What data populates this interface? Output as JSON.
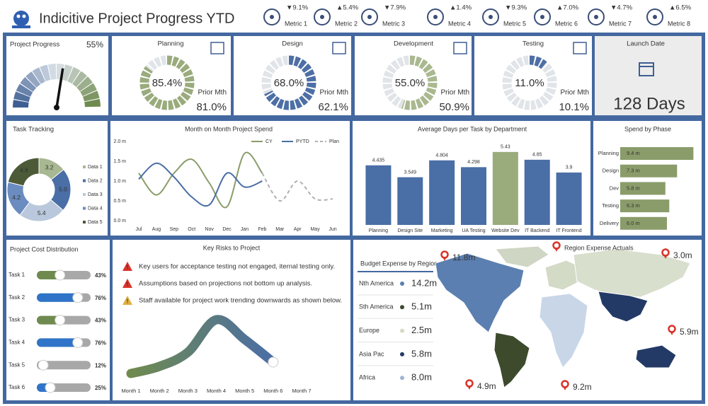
{
  "header": {
    "title": "Indicitive Project Progress YTD",
    "metrics": [
      {
        "change": "▼9.1%",
        "label": "Metric 1"
      },
      {
        "change": "▲5.4%",
        "label": "Metric 2"
      },
      {
        "change": "▼7.9%",
        "label": "Metric 3"
      },
      {
        "change": "▲1.4%",
        "label": "Metric 4"
      },
      {
        "change": "▼9.3%",
        "label": "Metric 5"
      },
      {
        "change": "▲7.0%",
        "label": "Metric 6"
      },
      {
        "change": "▼4.7%",
        "label": "Metric 7"
      },
      {
        "change": "▲6.5%",
        "label": "Metric 8"
      }
    ]
  },
  "launch_date": {
    "title": "Launch Date",
    "value": "128 Days"
  },
  "key_risks": {
    "title": "Key Risks to Project",
    "items": [
      {
        "text": "Key users for acceptance testing not engaged, iternal testing only.",
        "color": "#d9342b"
      },
      {
        "text": "Assumptions based on projections not bottom up analysis.",
        "color": "#d9342b"
      },
      {
        "text": "Staff available for project work trending downwards as shown below.",
        "color": "#e0b040"
      }
    ]
  },
  "budget": {
    "title": "Budget Expense by Region",
    "rows": [
      {
        "region": "Nth America",
        "amount": "14.2m",
        "color": "#5b7fb0"
      },
      {
        "region": "Sth America",
        "amount": "5.1m",
        "color": "#3d4a2c"
      },
      {
        "region": "Europe",
        "amount": "2.5m",
        "color": "#d3dac6"
      },
      {
        "region": "Asia Pac",
        "amount": "5.8m",
        "color": "#233a66"
      },
      {
        "region": "Africa",
        "amount": "8.0m",
        "color": "#9fb4d4"
      }
    ]
  },
  "map": {
    "title": "Region Expense Actuals",
    "pins": [
      "11.8m",
      "3.0m",
      "5.9m",
      "4.9m",
      "9.2m"
    ]
  },
  "chart_data": [
    {
      "type": "gauge",
      "title": "Project Progress",
      "value": 55,
      "value_label": "55%",
      "ylim": [
        0,
        100
      ],
      "colors": [
        "#3e5f93",
        "#dde3ea",
        "#6f8a4f"
      ]
    },
    {
      "type": "ring",
      "title": "Planning",
      "value": 85.4,
      "value_label": "85.4%",
      "prior_label": "Prior Mth",
      "prior_value": 81.0,
      "prior_value_label": "81.0%",
      "color": "#9aab7c",
      "ylim": [
        0,
        100
      ]
    },
    {
      "type": "ring",
      "title": "Design",
      "value": 68.0,
      "value_label": "68.0%",
      "prior_label": "Prior Mth",
      "prior_value": 62.1,
      "prior_value_label": "62.1%",
      "color": "#4d6fa6",
      "ylim": [
        0,
        100
      ]
    },
    {
      "type": "ring",
      "title": "Development",
      "value": 55.0,
      "value_label": "55.0%",
      "prior_label": "Prior Mth",
      "prior_value": 50.9,
      "prior_value_label": "50.9%",
      "color": "#aab88f",
      "ylim": [
        0,
        100
      ]
    },
    {
      "type": "ring",
      "title": "Testing",
      "value": 11.0,
      "value_label": "11.0%",
      "prior_label": "Prior Mth",
      "prior_value": 10.1,
      "prior_value_label": "10.1%",
      "color": "#4d6fa6",
      "ylim": [
        0,
        100
      ]
    },
    {
      "type": "donut",
      "title": "Task Tracking",
      "categories": [
        "Data 1",
        "Data 2",
        "Data 3",
        "Data 4",
        "Data 5"
      ],
      "values": [
        3.2,
        5.0,
        5.4,
        4.2,
        4.8
      ],
      "value_labels": [
        "3.2",
        "5.0",
        "5.4",
        "4.2",
        "4.8"
      ],
      "colors": [
        "#a8b892",
        "#4a6ea6",
        "#b9c8dc",
        "#6b8cc0",
        "#4c5a38"
      ]
    },
    {
      "type": "line",
      "title": "Month on Month Project Spend",
      "categories": [
        "Jul",
        "Aug",
        "Sep",
        "Oct",
        "Nov",
        "Dec",
        "Jan",
        "Feb",
        "Mar",
        "Apr",
        "May",
        "Jun"
      ],
      "series": [
        {
          "name": "CY",
          "color": "#8a9c6a",
          "dash": false,
          "values": [
            1.2,
            0.65,
            1.2,
            1.55,
            0.95,
            0.35,
            1.7,
            1.2,
            null,
            null,
            null,
            null
          ]
        },
        {
          "name": "PYTD",
          "color": "#4a6ea6",
          "dash": false,
          "values": [
            1.05,
            1.45,
            1.1,
            0.6,
            0.4,
            1.2,
            0.85,
            1.0,
            null,
            null,
            null,
            null
          ]
        },
        {
          "name": "Plan",
          "color": "#b0b0b0",
          "dash": true,
          "values": [
            null,
            null,
            null,
            null,
            null,
            null,
            null,
            1.2,
            0.5,
            1.0,
            0.55,
            0.55
          ]
        }
      ],
      "ylim": [
        0,
        2
      ],
      "yticks": [
        {
          "value": 0,
          "label": "0.0 m"
        },
        {
          "value": 0.5,
          "label": "0.5 m"
        },
        {
          "value": 1,
          "label": "1.0 m"
        },
        {
          "value": 1.5,
          "label": "1.5 m"
        },
        {
          "value": 2,
          "label": "2.0 m"
        }
      ],
      "grid": false
    },
    {
      "type": "bar",
      "title": "Average Days per Task by Department",
      "categories": [
        "Planning",
        "Design Site",
        "Marketing",
        "UA Testing",
        "Website Dev",
        "IT Backend",
        "IT Frontend"
      ],
      "values": [
        4.435,
        3.549,
        4.804,
        4.298,
        5.43,
        4.85,
        3.9
      ],
      "colors": [
        "#4a6ea6",
        "#4a6ea6",
        "#4a6ea6",
        "#4a6ea6",
        "#9aab7c",
        "#4a6ea6",
        "#4a6ea6"
      ],
      "ylim": [
        0,
        6
      ]
    },
    {
      "type": "hbar",
      "title": "Spend by Phase",
      "categories": [
        "Planning",
        "Design",
        "Dev",
        "Testing",
        "Delivery"
      ],
      "values": [
        9.4,
        7.3,
        5.8,
        6.3,
        6.0
      ],
      "value_labels": [
        "9.4 m",
        "7.3 m",
        "5.8 m",
        "6.3 m",
        "6.0 m"
      ],
      "color": "#8a9c6a",
      "xlim": [
        0,
        10
      ]
    },
    {
      "type": "slider",
      "title": "Project Cost Distribution",
      "categories": [
        "Task 1",
        "Task 2",
        "Task 3",
        "Task 4",
        "Task 5",
        "Task 6"
      ],
      "values": [
        43,
        76,
        43,
        76,
        12,
        25
      ],
      "value_labels": [
        "43%",
        "76%",
        "43%",
        "76%",
        "12%",
        "25%"
      ],
      "colors": [
        "#6f8a4f",
        "#2f74c8",
        "#6f8a4f",
        "#2f74c8",
        "#a8a8a8",
        "#2f74c8"
      ],
      "xlim": [
        0,
        100
      ]
    },
    {
      "type": "curve",
      "categories": [
        "Month 1",
        "Month 2",
        "Month 3",
        "Month 4",
        "Month 5",
        "Month 6",
        "Month 7"
      ],
      "values": [
        12,
        22,
        42,
        88,
        60,
        28,
        null
      ],
      "colors": [
        "#6f8a4f",
        "#4a6ea6"
      ],
      "ylim": [
        0,
        100
      ]
    }
  ]
}
